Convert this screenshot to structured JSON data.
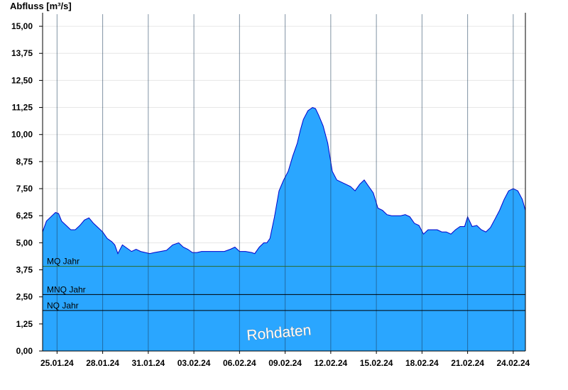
{
  "chart_data": {
    "type": "area",
    "ylabel": "Abfluss [m³/s]",
    "ylim": [
      0,
      15.625
    ],
    "y_ticks": [
      "0,00",
      "1,25",
      "2,50",
      "3,75",
      "5,00",
      "6,25",
      "7,50",
      "8,75",
      "10,00",
      "11,25",
      "12,50",
      "13,75",
      "15,00"
    ],
    "x_ticks": [
      "25.01.24",
      "28.01.24",
      "31.01.24",
      "03.02.24",
      "06.02.24",
      "09.02.24",
      "12.02.24",
      "15.02.24",
      "18.02.24",
      "21.02.24",
      "24.02.24"
    ],
    "x_tick_days": [
      0,
      3,
      6,
      9,
      12,
      15,
      18,
      21,
      24,
      27,
      30
    ],
    "xlim_days": [
      -0.95,
      30.8
    ],
    "x_unit": "days since 25.01.24",
    "series": [
      {
        "color": "#2aa6ff",
        "line_color": "#0000cc",
        "x": [
          -0.95,
          -0.7,
          -0.4,
          -0.1,
          0.1,
          0.3,
          0.6,
          0.9,
          1.2,
          1.5,
          1.8,
          2.1,
          2.4,
          2.7,
          3.0,
          3.3,
          3.6,
          3.8,
          4.0,
          4.3,
          4.6,
          4.9,
          5.2,
          5.5,
          5.8,
          6.1,
          6.4,
          6.8,
          7.2,
          7.6,
          8.0,
          8.3,
          8.6,
          8.9,
          9.2,
          9.5,
          9.8,
          10.5,
          11.0,
          11.4,
          11.7,
          12.0,
          12.4,
          12.8,
          13.0,
          13.3,
          13.6,
          13.8,
          14.0,
          14.3,
          14.6,
          14.9,
          15.2,
          15.5,
          15.8,
          16.0,
          16.2,
          16.5,
          16.8,
          17.0,
          17.2,
          17.5,
          17.8,
          18.1,
          18.4,
          18.7,
          19.0,
          19.3,
          19.6,
          19.9,
          20.2,
          20.5,
          20.8,
          21.1,
          21.4,
          21.7,
          22.0,
          22.3,
          22.6,
          22.9,
          23.2,
          23.5,
          23.8,
          24.1,
          24.4,
          24.7,
          25.0,
          25.3,
          25.6,
          25.9,
          26.2,
          26.5,
          26.8,
          27.0,
          27.3,
          27.6,
          27.9,
          28.2,
          28.5,
          28.8,
          29.1,
          29.4,
          29.7,
          30.0,
          30.3,
          30.6,
          30.8
        ],
        "values": [
          5.5,
          6.0,
          6.2,
          6.4,
          6.35,
          6.0,
          5.8,
          5.6,
          5.6,
          5.8,
          6.05,
          6.15,
          5.9,
          5.7,
          5.5,
          5.2,
          5.05,
          4.9,
          4.5,
          4.9,
          4.75,
          4.6,
          4.7,
          4.6,
          4.55,
          4.5,
          4.55,
          4.6,
          4.65,
          4.9,
          5.0,
          4.8,
          4.7,
          4.55,
          4.55,
          4.6,
          4.6,
          4.6,
          4.6,
          4.7,
          4.8,
          4.6,
          4.6,
          4.55,
          4.5,
          4.8,
          5.0,
          5.0,
          5.2,
          6.2,
          7.4,
          7.9,
          8.3,
          9.0,
          9.6,
          10.2,
          10.7,
          11.1,
          11.25,
          11.2,
          10.9,
          10.4,
          9.6,
          8.3,
          7.9,
          7.8,
          7.7,
          7.6,
          7.4,
          7.7,
          7.9,
          7.6,
          7.3,
          6.6,
          6.5,
          6.3,
          6.25,
          6.25,
          6.25,
          6.3,
          6.2,
          5.9,
          5.8,
          5.4,
          5.6,
          5.6,
          5.6,
          5.5,
          5.5,
          5.4,
          5.6,
          5.75,
          5.75,
          6.2,
          5.75,
          5.8,
          5.6,
          5.5,
          5.7,
          6.1,
          6.5,
          7.0,
          7.4,
          7.5,
          7.4,
          7.0,
          6.5
        ]
      }
    ],
    "reference_lines": [
      {
        "label": "MQ Jahr",
        "value": 3.91,
        "color": "#2a6a2a"
      },
      {
        "label": "MNQ Jahr",
        "value": 2.61,
        "color": "#000000"
      },
      {
        "label": "NQ Jahr",
        "value": 1.87,
        "color": "#000000"
      }
    ],
    "watermark": "Rohdaten",
    "grid": true
  }
}
